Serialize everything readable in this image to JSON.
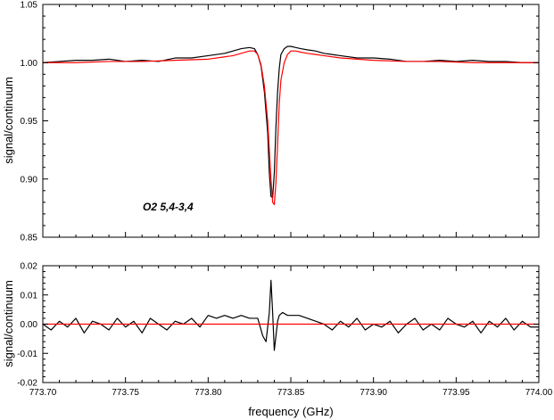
{
  "chart_data": [
    {
      "type": "line",
      "title": "",
      "xlabel": "",
      "ylabel": "signal/continuum",
      "xlim": [
        773.7,
        774.0
      ],
      "ylim": [
        0.85,
        1.05
      ],
      "xticks": [
        "773.70",
        "773.75",
        "773.80",
        "773.85",
        "773.90",
        "773.95",
        "774.00"
      ],
      "yticks": [
        "0.85",
        "0.90",
        "0.95",
        "1.00",
        "1.05"
      ],
      "grid": false,
      "annotation": "O2   5,4-3,4",
      "series": [
        {
          "color": "#000000",
          "x": [
            773.7,
            773.71,
            773.72,
            773.73,
            773.74,
            773.75,
            773.76,
            773.77,
            773.78,
            773.79,
            773.8,
            773.81,
            773.815,
            773.82,
            773.825,
            773.828,
            773.83,
            773.832,
            773.834,
            773.836,
            773.837,
            773.838,
            773.839,
            773.84,
            773.841,
            773.842,
            773.843,
            773.844,
            773.846,
            773.848,
            773.85,
            773.853,
            773.856,
            773.86,
            773.865,
            773.87,
            773.875,
            773.88,
            773.89,
            773.9,
            773.91,
            773.92,
            773.93,
            773.94,
            773.95,
            773.96,
            773.97,
            773.98,
            773.99,
            774.0
          ],
          "y": [
            1.0,
            1.001,
            1.002,
            1.002,
            1.003,
            1.001,
            1.002,
            1.001,
            1.004,
            1.004,
            1.006,
            1.008,
            1.01,
            1.012,
            1.013,
            1.012,
            1.007,
            0.997,
            0.975,
            0.94,
            0.905,
            0.885,
            0.884,
            0.905,
            0.945,
            0.975,
            0.995,
            1.007,
            1.012,
            1.014,
            1.014,
            1.013,
            1.012,
            1.011,
            1.01,
            1.008,
            1.007,
            1.006,
            1.004,
            1.004,
            1.003,
            1.001,
            1.001,
            1.002,
            1.001,
            1.002,
            1.001,
            1.001,
            1.0,
            1.0
          ]
        },
        {
          "color": "#ff0000",
          "x": [
            773.7,
            773.72,
            773.74,
            773.76,
            773.78,
            773.8,
            773.81,
            773.815,
            773.82,
            773.825,
            773.828,
            773.83,
            773.832,
            773.834,
            773.836,
            773.837,
            773.838,
            773.839,
            773.84,
            773.841,
            773.842,
            773.843,
            773.844,
            773.846,
            773.848,
            773.85,
            773.853,
            773.856,
            773.86,
            773.865,
            773.87,
            773.88,
            773.9,
            773.92,
            773.94,
            773.96,
            773.98,
            774.0
          ],
          "y": [
            1.0,
            1.0,
            1.001,
            1.001,
            1.002,
            1.003,
            1.005,
            1.006,
            1.008,
            1.01,
            1.01,
            1.007,
            0.998,
            0.98,
            0.95,
            0.925,
            0.9,
            0.88,
            0.878,
            0.897,
            0.93,
            0.965,
            0.985,
            1.0,
            1.007,
            1.01,
            1.01,
            1.009,
            1.008,
            1.007,
            1.006,
            1.004,
            1.002,
            1.001,
            1.001,
            1.0,
            1.0,
            1.0
          ]
        }
      ]
    },
    {
      "type": "line",
      "title": "",
      "xlabel": "frequency (GHz)",
      "ylabel": "signal/continuum",
      "xlim": [
        773.7,
        774.0
      ],
      "ylim": [
        -0.02,
        0.02
      ],
      "xticks": [
        "773.70",
        "773.75",
        "773.80",
        "773.85",
        "773.90",
        "773.95",
        "774.00"
      ],
      "yticks": [
        "-0.02",
        "-0.01",
        "0.00",
        "0.01",
        "0.02"
      ],
      "grid": false,
      "series": [
        {
          "color": "#000000",
          "x": [
            773.7,
            773.705,
            773.71,
            773.715,
            773.72,
            773.725,
            773.73,
            773.735,
            773.74,
            773.745,
            773.75,
            773.755,
            773.76,
            773.765,
            773.77,
            773.775,
            773.78,
            773.785,
            773.79,
            773.795,
            773.8,
            773.805,
            773.81,
            773.815,
            773.82,
            773.825,
            773.83,
            773.833,
            773.835,
            773.837,
            773.838,
            773.839,
            773.84,
            773.841,
            773.842,
            773.843,
            773.845,
            773.848,
            773.85,
            773.855,
            773.86,
            773.865,
            773.87,
            773.875,
            773.88,
            773.885,
            773.89,
            773.895,
            773.9,
            773.905,
            773.91,
            773.915,
            773.92,
            773.925,
            773.93,
            773.935,
            773.94,
            773.945,
            773.95,
            773.955,
            773.96,
            773.965,
            773.97,
            773.975,
            773.98,
            773.985,
            773.99,
            773.995,
            774.0
          ],
          "y": [
            0.0,
            -0.002,
            0.001,
            -0.001,
            0.002,
            -0.003,
            0.001,
            0.0,
            -0.002,
            0.002,
            -0.001,
            0.001,
            -0.003,
            0.002,
            0.0,
            -0.002,
            0.001,
            0.0,
            0.002,
            -0.001,
            0.003,
            0.002,
            0.003,
            0.002,
            0.003,
            0.002,
            0.002,
            -0.004,
            -0.006,
            0.004,
            0.015,
            0.004,
            -0.009,
            -0.004,
            0.001,
            0.003,
            0.004,
            0.003,
            0.003,
            0.003,
            0.002,
            0.001,
            0.0,
            -0.002,
            0.001,
            -0.001,
            0.002,
            -0.002,
            0.0,
            -0.001,
            0.001,
            -0.003,
            0.0,
            0.002,
            -0.002,
            0.0,
            -0.002,
            0.002,
            0.0,
            -0.001,
            0.001,
            -0.003,
            0.001,
            -0.001,
            0.002,
            -0.002,
            0.001,
            -0.001,
            -0.001
          ]
        },
        {
          "color": "#ff0000",
          "x": [
            773.7,
            774.0
          ],
          "y": [
            0.0,
            0.0
          ]
        }
      ]
    }
  ]
}
